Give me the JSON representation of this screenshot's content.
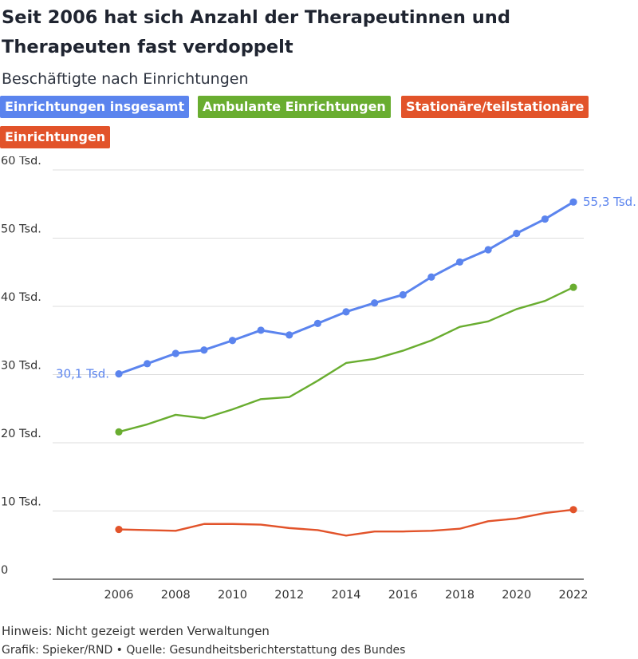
{
  "title": "Seit 2006 hat sich Anzahl der Therapeutinnen und Therapeuten fast verdoppelt",
  "subtitle": "Beschäftigte nach Einrichtungen",
  "legend": [
    {
      "label": "Einrichtungen insgesamt",
      "color": "#5b84ee"
    },
    {
      "label": "Ambulante Einrichtungen",
      "color": "#69ad30"
    },
    {
      "label": "Stationäre/teilstationäre",
      "color": "#e2532a"
    },
    {
      "label": "Einrichtungen",
      "color": "#e2532a"
    }
  ],
  "footer": {
    "note": "Hinweis: Nicht gezeigt werden Verwaltungen",
    "credit": "Grafik: Spieker/RND • Quelle: Gesundheitsberichterstattung des Bundes"
  },
  "chart_data": {
    "type": "line",
    "title": "Seit 2006 hat sich Anzahl der Therapeutinnen und Therapeuten fast verdoppelt",
    "subtitle": "Beschäftigte nach Einrichtungen",
    "x": [
      2006,
      2007,
      2008,
      2009,
      2010,
      2011,
      2012,
      2013,
      2014,
      2015,
      2016,
      2017,
      2018,
      2019,
      2020,
      2021,
      2022
    ],
    "xticks": [
      2006,
      2008,
      2010,
      2012,
      2014,
      2016,
      2018,
      2020,
      2022
    ],
    "xtick_labels": [
      "2006",
      "2008",
      "2010",
      "2012",
      "2014",
      "2016",
      "2018",
      "2020",
      "2022"
    ],
    "ylim": [
      0,
      60
    ],
    "yticks": [
      0,
      10,
      20,
      30,
      40,
      50,
      60
    ],
    "ytick_labels": [
      "0",
      "10 Tsd.",
      "20 Tsd.",
      "30 Tsd.",
      "40 Tsd.",
      "50 Tsd.",
      "60 Tsd."
    ],
    "grid": true,
    "series": [
      {
        "name": "Einrichtungen insgesamt",
        "color": "#5b84ee",
        "markers": "all",
        "values": [
          30.1,
          31.6,
          33.1,
          33.6,
          35.0,
          36.5,
          35.8,
          37.5,
          39.2,
          40.5,
          41.7,
          44.3,
          46.5,
          48.3,
          50.7,
          52.8,
          55.3
        ]
      },
      {
        "name": "Ambulante Einrichtungen",
        "color": "#69ad30",
        "markers": "ends",
        "values": [
          21.6,
          22.7,
          24.1,
          23.6,
          24.9,
          26.4,
          26.7,
          29.1,
          31.7,
          32.3,
          33.5,
          35.0,
          37.0,
          37.8,
          39.6,
          40.8,
          42.8
        ]
      },
      {
        "name": "Stationäre/teilstationäre Einrichtungen",
        "color": "#e2532a",
        "markers": "ends",
        "values": [
          7.3,
          7.2,
          7.1,
          8.1,
          8.1,
          8.0,
          7.5,
          7.2,
          6.4,
          7.0,
          7.0,
          7.1,
          7.4,
          8.5,
          8.9,
          9.7,
          10.2
        ]
      }
    ],
    "annotations": [
      {
        "text": "30,1 Tsd.",
        "series": 0,
        "x": 2006,
        "position": "left",
        "color": "#5b84ee"
      },
      {
        "text": "55,3 Tsd.",
        "series": 0,
        "x": 2022,
        "position": "right",
        "color": "#5b84ee"
      }
    ]
  }
}
